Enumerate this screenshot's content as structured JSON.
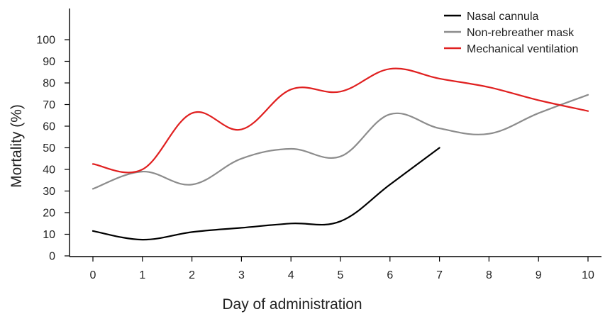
{
  "chart_data": {
    "type": "line",
    "title": "",
    "xlabel": "Day of administration",
    "ylabel": "Mortality (%)",
    "x": [
      0,
      1,
      2,
      3,
      4,
      5,
      6,
      7,
      8,
      9,
      10
    ],
    "xticks": [
      "0",
      "1",
      "2",
      "3",
      "4",
      "5",
      "6",
      "7",
      "8",
      "9",
      "10"
    ],
    "yticks": [
      "0",
      "10",
      "20",
      "30",
      "40",
      "50",
      "60",
      "70",
      "80",
      "90",
      "100"
    ],
    "ylim": [
      0,
      100
    ],
    "xlim": [
      -0.5,
      10.1
    ],
    "grid": false,
    "legend_position": "top-right",
    "series": [
      {
        "name": "Nasal cannula",
        "color": "#000000",
        "x": [
          0,
          1,
          2,
          3,
          4,
          5,
          6,
          7
        ],
        "values": [
          11.5,
          7.5,
          11,
          13,
          15,
          16,
          33,
          50
        ]
      },
      {
        "name": "Non-rebreather mask",
        "color": "#8c8c8c",
        "x": [
          0,
          1,
          2,
          3,
          4,
          5,
          6,
          7,
          8,
          9,
          10
        ],
        "values": [
          31,
          39,
          33,
          45,
          49.5,
          46,
          65.5,
          59,
          56.5,
          66,
          74.5
        ]
      },
      {
        "name": "Mechanical ventilation",
        "color": "#e02020",
        "x": [
          0,
          1,
          2,
          3,
          4,
          5,
          6,
          7,
          8,
          9,
          10
        ],
        "values": [
          42.5,
          40,
          66,
          58.5,
          77,
          76,
          86.5,
          82,
          78,
          72,
          67
        ]
      }
    ]
  }
}
